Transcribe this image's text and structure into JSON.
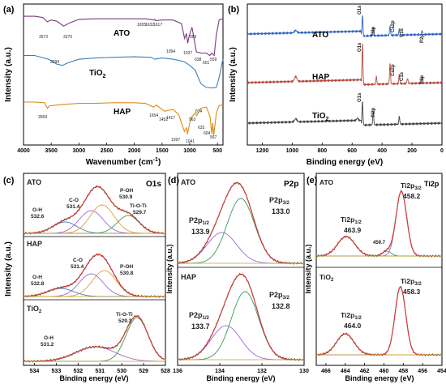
{
  "chart_data": [
    {
      "panel": "(a)",
      "type": "line",
      "xlabel": "Wavenumber (cm",
      "xlabel_sup": "-1",
      "xlabel_end": ")",
      "ylabel": "Intensity (a.u.)",
      "xlim": [
        4000,
        400
      ],
      "x_reversed": true,
      "ylim": [
        0,
        11.5
      ],
      "xticks": [
        4000,
        3500,
        3000,
        2500,
        2000,
        1500,
        1000,
        500
      ],
      "series": [
        {
          "name": "ATO",
          "color": "#7b3a7b",
          "points": [
            [
              4000,
              10.5
            ],
            [
              3800,
              10.5
            ],
            [
              3650,
              10.4
            ],
            [
              3572,
              10.05
            ],
            [
              3500,
              10.2
            ],
            [
              3400,
              10.1
            ],
            [
              3275,
              9.7
            ],
            [
              3150,
              10.0
            ],
            [
              3000,
              10.25
            ],
            [
              2700,
              10.3
            ],
            [
              2400,
              10.3
            ],
            [
              2000,
              10.3
            ],
            [
              1800,
              10.3
            ],
            [
              1655,
              10.2
            ],
            [
              1632,
              10.25
            ],
            [
              1617,
              10.15
            ],
            [
              1500,
              10.2
            ],
            [
              1300,
              10.2
            ],
            [
              1150,
              9.9
            ],
            [
              1094,
              8.7
            ],
            [
              1060,
              9.1
            ],
            [
              1037,
              8.3
            ],
            [
              1010,
              8.9
            ],
            [
              959,
              9.6
            ],
            [
              920,
              8.6
            ],
            [
              880,
              7.6
            ],
            [
              800,
              7.5
            ],
            [
              700,
              7.5
            ],
            [
              638,
              7.3
            ],
            [
              601,
              7.5
            ],
            [
              559,
              7.3
            ],
            [
              520,
              9.0
            ],
            [
              470,
              10.2
            ],
            [
              400,
              10.3
            ]
          ]
        },
        {
          "name": "TiO2",
          "color": "#3a7fb4",
          "points": [
            [
              4000,
              7.3
            ],
            [
              3800,
              7.3
            ],
            [
              3550,
              7.0
            ],
            [
              3400,
              6.6
            ],
            [
              3299,
              6.5
            ],
            [
              3200,
              6.7
            ],
            [
              3000,
              7.0
            ],
            [
              2700,
              7.1
            ],
            [
              2400,
              7.15
            ],
            [
              2000,
              7.2
            ],
            [
              1700,
              7.15
            ],
            [
              1630,
              7.0
            ],
            [
              1500,
              7.1
            ],
            [
              1300,
              7.0
            ],
            [
              1100,
              6.8
            ],
            [
              1000,
              6.5
            ],
            [
              900,
              6.1
            ],
            [
              800,
              5.0
            ],
            [
              700,
              4.7
            ],
            [
              600,
              4.65
            ],
            [
              520,
              4.7
            ],
            [
              470,
              5.5
            ],
            [
              420,
              6.6
            ],
            [
              400,
              7.0
            ]
          ]
        },
        {
          "name": "HAP",
          "color": "#d98c14",
          "points": [
            [
              4000,
              3.5
            ],
            [
              3800,
              3.5
            ],
            [
              3620,
              3.45
            ],
            [
              3569,
              3.0
            ],
            [
              3530,
              3.2
            ],
            [
              3300,
              3.3
            ],
            [
              3000,
              3.4
            ],
            [
              2700,
              3.4
            ],
            [
              2400,
              3.45
            ],
            [
              2000,
              3.45
            ],
            [
              1800,
              3.4
            ],
            [
              1654,
              3.1
            ],
            [
              1600,
              3.25
            ],
            [
              1452,
              2.75
            ],
            [
              1417,
              2.8
            ],
            [
              1300,
              2.9
            ],
            [
              1200,
              2.5
            ],
            [
              1097,
              1.1
            ],
            [
              1060,
              1.4
            ],
            [
              1041,
              0.9
            ],
            [
              1000,
              1.8
            ],
            [
              963,
              2.3
            ],
            [
              900,
              2.6
            ],
            [
              874,
              2.4
            ],
            [
              800,
              3.0
            ],
            [
              700,
              3.1
            ],
            [
              633,
              2.3
            ],
            [
              604,
              0.9
            ],
            [
              585,
              1.8
            ],
            [
              567,
              0.8
            ],
            [
              520,
              2.6
            ],
            [
              470,
              3.2
            ],
            [
              400,
              3.3
            ]
          ]
        }
      ],
      "curve_labels": [
        "ATO",
        "TiO2",
        "HAP"
      ],
      "annotations": [
        "3572",
        "3275",
        "1655",
        "1632",
        "1617",
        "1094",
        "1037",
        "959",
        "638",
        "601",
        "559",
        "3299",
        "3569",
        "1654",
        "1452",
        "1417",
        "1097",
        "1041",
        "963",
        "874",
        "633",
        "604",
        "567"
      ]
    },
    {
      "panel": "(b)",
      "type": "line",
      "xlabel": "Binding energy (eV)",
      "ylabel": "Intensity (a.u.)",
      "xlim": [
        1300,
        0
      ],
      "x_reversed": true,
      "ylim": [
        0,
        10
      ],
      "xticks": [
        1200,
        1000,
        800,
        600,
        400,
        200,
        0
      ],
      "series": [
        {
          "name": "ATO",
          "color": "#2f63c8"
        },
        {
          "name": "HAP",
          "color": "#b8483c"
        },
        {
          "name": "TiO2",
          "color": "#444444"
        }
      ],
      "peak_labels": [
        "O1s",
        "Ti2p",
        "Ca2p",
        "C1s",
        "P2p",
        "O1s",
        "Ca2p",
        "C1s",
        "P2p",
        "O1s",
        "Ti2p"
      ]
    },
    {
      "panel": "(c)",
      "type": "line",
      "title_right": "O1s",
      "xlabel": "Binding energy (eV)",
      "ylabel": "Intensity (a.u.)",
      "xlim": [
        534.5,
        528
      ],
      "x_reversed": true,
      "xticks": [
        534,
        533,
        532,
        531,
        530,
        529,
        528
      ],
      "subplots": [
        {
          "name": "ATO",
          "components": [
            {
              "label": "O-H",
              "value": "532.6"
            },
            {
              "label": "C-O",
              "value": "531.4"
            },
            {
              "label": "P-OH",
              "value": "530.9"
            },
            {
              "label": "Ti-O-Ti",
              "value": "529.7"
            }
          ]
        },
        {
          "name": "HAP",
          "components": [
            {
              "label": "C-O",
              "value": "531.4"
            },
            {
              "label": "P-OH",
              "value": "530.8"
            },
            {
              "label": "O-H",
              "value": "532.8"
            }
          ]
        },
        {
          "name": "TiO2",
          "components": [
            {
              "label": "Ti-O-Ti",
              "value": "529.3"
            },
            {
              "label": "O-H",
              "value": "531.2"
            }
          ]
        }
      ]
    },
    {
      "panel": "(d)",
      "type": "line",
      "title_right": "P2p",
      "xlabel": "Binding energy (eV)",
      "ylabel": "Intensity (a.u.)",
      "xlim": [
        136,
        130
      ],
      "x_reversed": true,
      "xticks": [
        136,
        134,
        132,
        130
      ],
      "subplots": [
        {
          "name": "ATO",
          "components": [
            {
              "label": "P2p1/2",
              "value": "133.9"
            },
            {
              "label": "P2p3/2",
              "value": "133.0"
            }
          ]
        },
        {
          "name": "HAP",
          "components": [
            {
              "label": "P2p1/2",
              "value": "133.7"
            },
            {
              "label": "P2p3/2",
              "value": "132.8"
            }
          ]
        }
      ]
    },
    {
      "panel": "(e)",
      "type": "line",
      "title_right": "Ti2p",
      "xlabel": "Binding energy (eV)",
      "ylabel": "Intensity (a.u.)",
      "xlim": [
        467,
        454
      ],
      "x_reversed": true,
      "xticks": [
        466,
        464,
        462,
        460,
        458,
        456,
        454
      ],
      "subplots": [
        {
          "name": "ATO",
          "components": [
            {
              "label": "Ti2p1/2",
              "value": "463.9"
            },
            {
              "label": "Ti2p3/2",
              "value": "458.2"
            },
            {
              "label": "",
              "value": "459.7"
            }
          ]
        },
        {
          "name": "TiO2",
          "components": [
            {
              "label": "Ti2p1/2",
              "value": "464.0"
            },
            {
              "label": "Ti2p3/2",
              "value": "458.3"
            }
          ]
        }
      ]
    }
  ]
}
